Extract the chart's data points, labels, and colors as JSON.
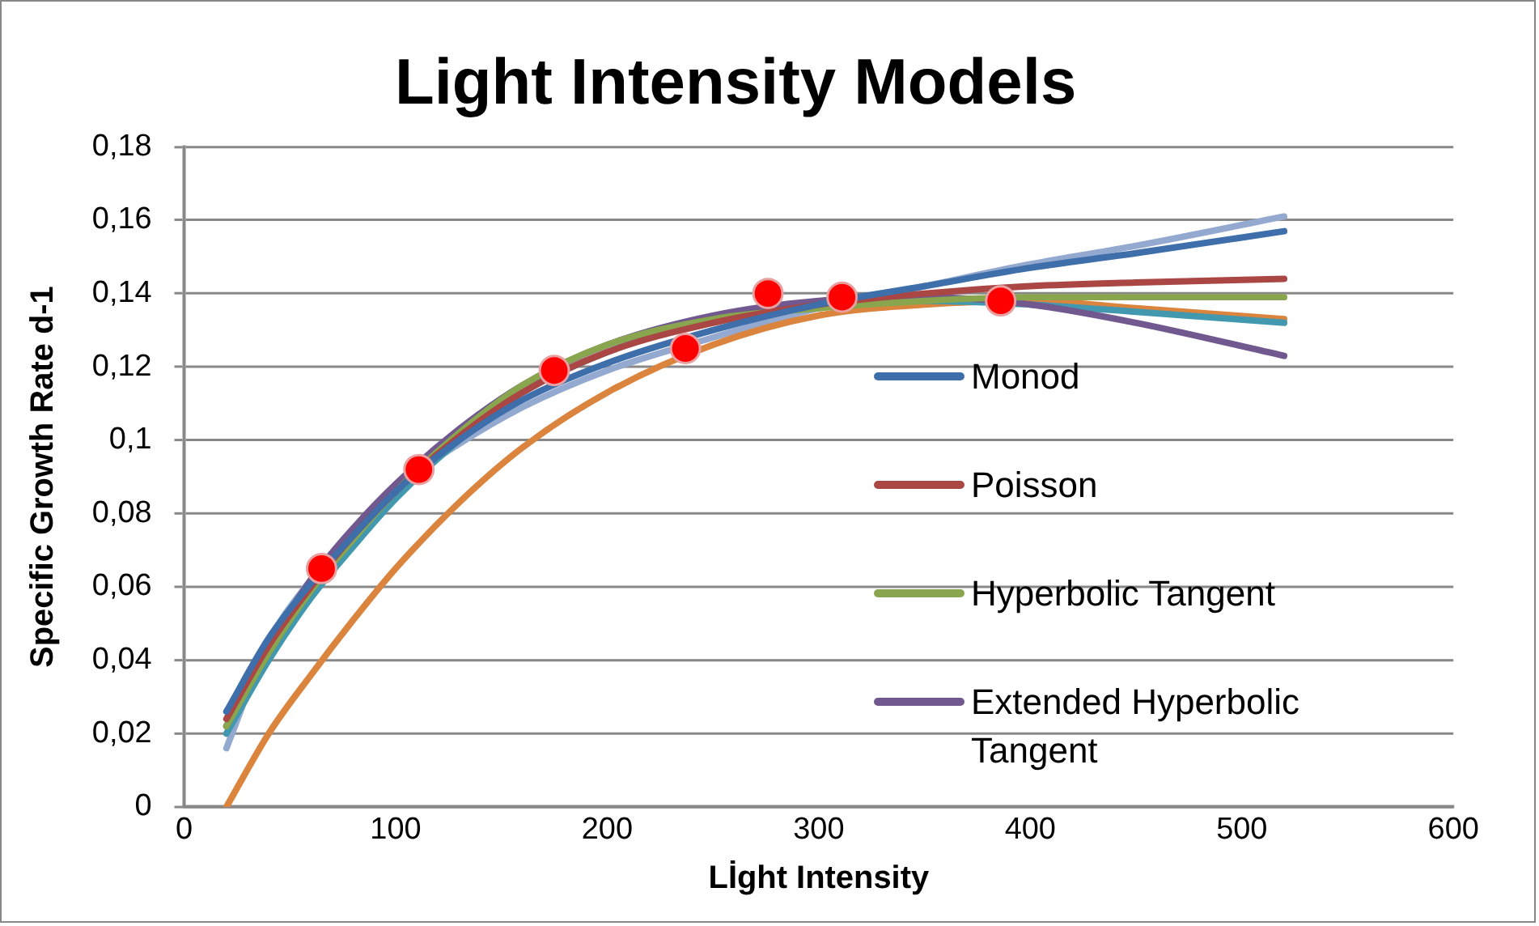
{
  "chart_data": {
    "type": "line",
    "title": "Light Intensity Models",
    "xlabel": "Lİght Intensity",
    "ylabel": "Specific Growth Rate d-1",
    "x": [
      20,
      40,
      60,
      80,
      100,
      130,
      160,
      200,
      250,
      300,
      350,
      400,
      450,
      520
    ],
    "series": [
      {
        "name": "Monod",
        "color": "#3f6faa",
        "values": [
          0.026,
          0.046,
          0.061,
          0.074,
          0.086,
          0.1,
          0.111,
          0.121,
          0.13,
          0.137,
          0.142,
          0.147,
          0.151,
          0.157
        ]
      },
      {
        "name": "Poisson",
        "color": "#aa4643",
        "values": [
          0.024,
          0.044,
          0.06,
          0.074,
          0.086,
          0.101,
          0.113,
          0.124,
          0.132,
          0.137,
          0.14,
          0.142,
          0.143,
          0.144
        ]
      },
      {
        "name": "Hyperbolic Tangent",
        "color": "#89a54e",
        "values": [
          0.022,
          0.042,
          0.059,
          0.073,
          0.086,
          0.102,
          0.115,
          0.126,
          0.133,
          0.136,
          0.138,
          0.139,
          0.139,
          0.139
        ]
      },
      {
        "name": "Extended Hyperbolic Tangent",
        "color": "#71588f",
        "values": [
          0.022,
          0.044,
          0.062,
          0.076,
          0.088,
          0.103,
          0.115,
          0.126,
          0.134,
          0.138,
          0.139,
          0.137,
          0.132,
          0.123
        ]
      },
      {
        "color": "#4198af",
        "values": [
          0.02,
          0.04,
          0.057,
          0.071,
          0.084,
          0.1,
          0.113,
          0.124,
          0.133,
          0.137,
          0.138,
          0.137,
          0.135,
          0.132
        ]
      },
      {
        "color": "#db843d",
        "values": [
          0.0,
          0.02,
          0.036,
          0.051,
          0.065,
          0.083,
          0.098,
          0.113,
          0.126,
          0.134,
          0.137,
          0.138,
          0.136,
          0.133
        ]
      },
      {
        "color": "#93a9cf",
        "values": [
          0.016,
          0.045,
          0.062,
          0.076,
          0.087,
          0.099,
          0.109,
          0.119,
          0.128,
          0.136,
          0.142,
          0.148,
          0.153,
          0.161
        ]
      },
      {
        "type": "scatter",
        "marker": "circle",
        "color": "#ff0000",
        "x": [
          65,
          111,
          175,
          237,
          276,
          311,
          386
        ],
        "values": [
          0.065,
          0.092,
          0.119,
          0.125,
          0.14,
          0.139,
          0.138
        ]
      }
    ],
    "xlim": [
      0,
      600
    ],
    "xticks": [
      0,
      100,
      200,
      300,
      400,
      500,
      600
    ],
    "ylim": [
      0,
      0.18
    ],
    "yticks": [
      {
        "value": 0,
        "label": "0"
      },
      {
        "value": 0.02,
        "label": "0,02"
      },
      {
        "value": 0.04,
        "label": "0,04"
      },
      {
        "value": 0.06,
        "label": "0,06"
      },
      {
        "value": 0.08,
        "label": "0,08"
      },
      {
        "value": 0.1,
        "label": "0,1"
      },
      {
        "value": 0.12,
        "label": "0,12"
      },
      {
        "value": 0.14,
        "label": "0,14"
      },
      {
        "value": 0.16,
        "label": "0,16"
      },
      {
        "value": 0.18,
        "label": "0,18"
      }
    ],
    "grid": "y",
    "legend": "right"
  }
}
